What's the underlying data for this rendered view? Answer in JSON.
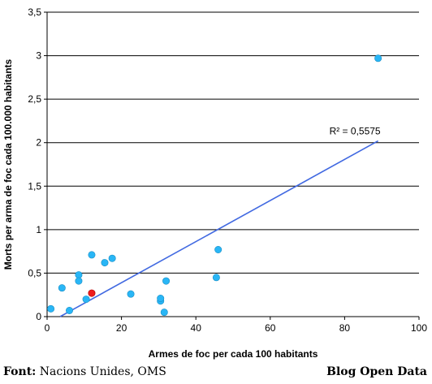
{
  "chart_data": {
    "type": "scatter",
    "xlabel": "Armes de foc per cada 100 habitants",
    "ylabel": "Morts per arma de foc cada 100.000 habitants",
    "xlim": [
      0,
      100
    ],
    "ylim": [
      0,
      3.5
    ],
    "x_ticks": [
      "0",
      "20",
      "40",
      "60",
      "80",
      "100"
    ],
    "y_ticks": [
      "0",
      "0,5",
      "1",
      "1,5",
      "2",
      "2,5",
      "3",
      "3,5"
    ],
    "grid": "horizontal",
    "colors": {
      "points": "#29b6f6",
      "highlight": "#ee1c1c",
      "trendline": "#4169e1",
      "grid": "#000000"
    },
    "points": [
      {
        "x": 1,
        "y": 0.09
      },
      {
        "x": 4,
        "y": 0.33
      },
      {
        "x": 6,
        "y": 0.07
      },
      {
        "x": 8.5,
        "y": 0.48
      },
      {
        "x": 8.5,
        "y": 0.41
      },
      {
        "x": 10.5,
        "y": 0.2
      },
      {
        "x": 12,
        "y": 0.71
      },
      {
        "x": 15.5,
        "y": 0.62
      },
      {
        "x": 17.5,
        "y": 0.67
      },
      {
        "x": 22.5,
        "y": 0.26
      },
      {
        "x": 30.5,
        "y": 0.18
      },
      {
        "x": 30.5,
        "y": 0.21
      },
      {
        "x": 31.5,
        "y": 0.05
      },
      {
        "x": 32,
        "y": 0.41
      },
      {
        "x": 45.5,
        "y": 0.45
      },
      {
        "x": 46,
        "y": 0.77
      },
      {
        "x": 89,
        "y": 2.97
      }
    ],
    "highlight_points": [
      {
        "x": 12,
        "y": 0.27
      }
    ],
    "trendline": {
      "x": [
        3.5,
        89
      ],
      "y": [
        0,
        2.02
      ],
      "label": "R² = 0,5575"
    }
  },
  "footer": {
    "source_label": "Font:",
    "source_text": " Nacions Unides, OMS",
    "brand": "Blog Open Data"
  }
}
